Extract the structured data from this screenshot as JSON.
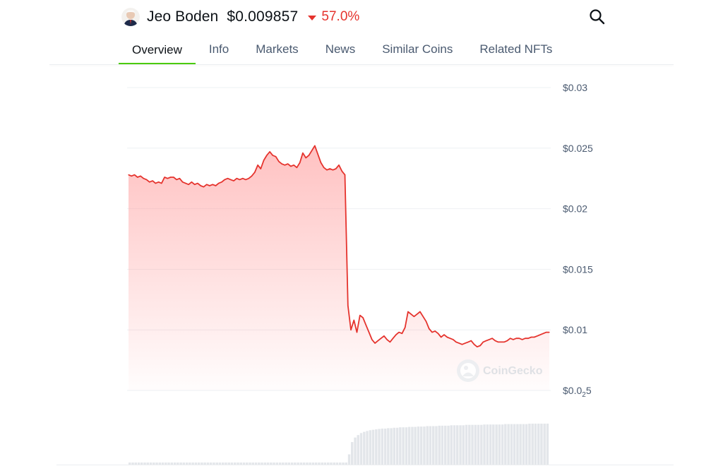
{
  "header": {
    "coin_name": "Jeo Boden",
    "price": "$0.009857",
    "change": "57.0%",
    "change_direction": "down",
    "change_color": "#e5332d",
    "avatar_icon": "coin-avatar-icon",
    "search_icon": "search-icon"
  },
  "tabs": [
    {
      "label": "Overview",
      "active": true
    },
    {
      "label": "Info",
      "active": false
    },
    {
      "label": "Markets",
      "active": false
    },
    {
      "label": "News",
      "active": false
    },
    {
      "label": "Similar Coins",
      "active": false
    },
    {
      "label": "Related NFTs",
      "active": false
    }
  ],
  "accent_color": "#4bcc00",
  "chart_data": {
    "type": "area",
    "title": "",
    "xlabel": "",
    "ylabel": "",
    "yscale": "linear",
    "ylim": [
      0.005,
      0.03
    ],
    "y_ticks": [
      {
        "value": 0.03,
        "label": "$0.03"
      },
      {
        "value": 0.025,
        "label": "$0.025"
      },
      {
        "value": 0.02,
        "label": "$0.02"
      },
      {
        "value": 0.015,
        "label": "$0.015"
      },
      {
        "value": 0.01,
        "label": "$0.01"
      },
      {
        "value": 0.005,
        "label": "$0.0",
        "sub": "2",
        "tail": "5"
      }
    ],
    "grid": true,
    "line_color": "#e5332d",
    "fill_color": "#ff9a9a",
    "watermark": "CoinGecko",
    "series": [
      {
        "values": [
          0.0228,
          0.0227,
          0.0228,
          0.0226,
          0.0227,
          0.0225,
          0.0224,
          0.0222,
          0.0223,
          0.0221,
          0.0222,
          0.0221,
          0.0226,
          0.0225,
          0.0226,
          0.0226,
          0.0224,
          0.0225,
          0.0222,
          0.0221,
          0.022,
          0.0222,
          0.022,
          0.0221,
          0.0219,
          0.0218,
          0.022,
          0.0219,
          0.022,
          0.0219,
          0.0221,
          0.0222,
          0.0224,
          0.0225,
          0.0224,
          0.0223,
          0.0225,
          0.0224,
          0.0225,
          0.0224,
          0.0225,
          0.0227,
          0.023,
          0.0236,
          0.0233,
          0.024,
          0.0244,
          0.0247,
          0.0244,
          0.0243,
          0.0239,
          0.0237,
          0.0236,
          0.0237,
          0.0235,
          0.0236,
          0.0234,
          0.0238,
          0.0246,
          0.0242,
          0.0244,
          0.0248,
          0.0252,
          0.0245,
          0.0238,
          0.0234,
          0.0232,
          0.0233,
          0.0232,
          0.0233,
          0.0236,
          0.0231,
          0.0228,
          0.012,
          0.01,
          0.0108,
          0.0098,
          0.0112,
          0.011,
          0.0104,
          0.0098,
          0.0092,
          0.0089,
          0.0091,
          0.0093,
          0.0095,
          0.0092,
          0.009,
          0.0093,
          0.0096,
          0.0098,
          0.0097,
          0.0102,
          0.0115,
          0.0113,
          0.0111,
          0.0113,
          0.0115,
          0.0111,
          0.0107,
          0.0101,
          0.0098,
          0.0099,
          0.0097,
          0.0094,
          0.0096,
          0.0094,
          0.0093,
          0.0092,
          0.009,
          0.0089,
          0.0088,
          0.0089,
          0.009,
          0.0091,
          0.0088,
          0.0086,
          0.0087,
          0.009,
          0.0091,
          0.0092,
          0.0093,
          0.0091,
          0.009,
          0.009,
          0.009,
          0.0091,
          0.0093,
          0.0092,
          0.0093,
          0.0093,
          0.0092,
          0.0093,
          0.0093,
          0.0094,
          0.0094,
          0.0095,
          0.0096,
          0.0097,
          0.0098,
          0.0098
        ]
      }
    ],
    "volume_bars": [
      0.05,
      0.05,
      0.05,
      0.05,
      0.05,
      0.05,
      0.05,
      0.05,
      0.05,
      0.05,
      0.05,
      0.05,
      0.05,
      0.05,
      0.05,
      0.05,
      0.05,
      0.05,
      0.05,
      0.05,
      0.05,
      0.05,
      0.05,
      0.05,
      0.05,
      0.05,
      0.05,
      0.05,
      0.05,
      0.05,
      0.05,
      0.05,
      0.05,
      0.05,
      0.05,
      0.05,
      0.05,
      0.05,
      0.05,
      0.05,
      0.05,
      0.05,
      0.05,
      0.05,
      0.05,
      0.05,
      0.05,
      0.05,
      0.05,
      0.05,
      0.05,
      0.05,
      0.05,
      0.05,
      0.05,
      0.05,
      0.05,
      0.05,
      0.05,
      0.05,
      0.05,
      0.05,
      0.05,
      0.05,
      0.05,
      0.05,
      0.05,
      0.05,
      0.05,
      0.05,
      0.05,
      0.05,
      0.05,
      0.25,
      0.55,
      0.66,
      0.72,
      0.77,
      0.8,
      0.82,
      0.84,
      0.85,
      0.86,
      0.87,
      0.88,
      0.88,
      0.89,
      0.89,
      0.9,
      0.9,
      0.91,
      0.91,
      0.91,
      0.92,
      0.92,
      0.92,
      0.93,
      0.93,
      0.93,
      0.94,
      0.94,
      0.94,
      0.94,
      0.95,
      0.95,
      0.95,
      0.95,
      0.96,
      0.96,
      0.96,
      0.96,
      0.96,
      0.97,
      0.97,
      0.97,
      0.97,
      0.97,
      0.97,
      0.98,
      0.98,
      0.98,
      0.98,
      0.98,
      0.98,
      0.98,
      0.99,
      0.99,
      0.99,
      0.99,
      0.99,
      0.99,
      0.99,
      0.99,
      1.0,
      1.0,
      1.0,
      1.0,
      1.0,
      1.0,
      1.0
    ]
  }
}
